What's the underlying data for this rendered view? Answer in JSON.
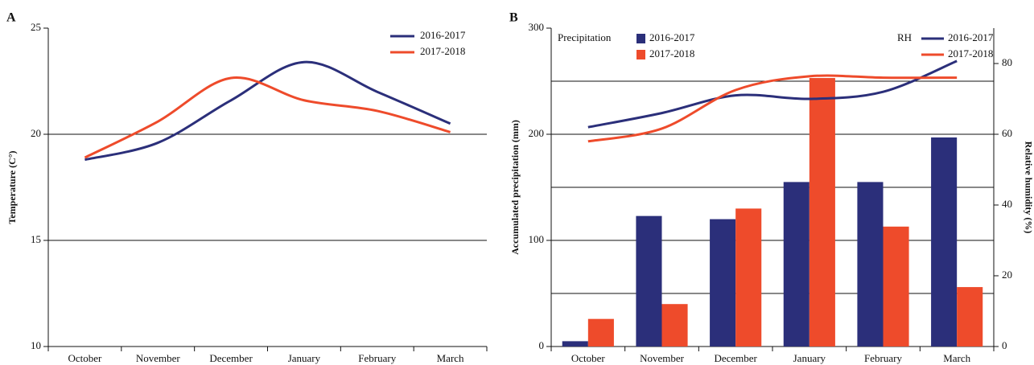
{
  "chart_data": [
    {
      "type": "line",
      "label": "A",
      "ylabel": "Temperature (C°)",
      "categories": [
        "October",
        "November",
        "December",
        "January",
        "February",
        "March"
      ],
      "ylim": [
        10,
        25
      ],
      "yticks": [
        10,
        15,
        20,
        25
      ],
      "grid_lines": [
        15,
        20
      ],
      "series": [
        {
          "name": "2016-2017",
          "color": "#2b2f7a",
          "values": [
            18.8,
            19.6,
            21.6,
            23.4,
            22.0,
            20.5
          ]
        },
        {
          "name": "2017-2018",
          "color": "#ee4b2b",
          "values": [
            18.9,
            20.6,
            22.65,
            21.6,
            21.1,
            20.1
          ]
        }
      ]
    },
    {
      "type": "bar_line",
      "label": "B",
      "ylabel": "Accumulated precipitation (mm)",
      "y2label": "Relative humidity (%)",
      "bar_legend_title": "Precipitation",
      "line_legend_title": "RH",
      "categories": [
        "October",
        "November",
        "December",
        "January",
        "February",
        "March"
      ],
      "ylim": [
        0,
        300
      ],
      "yticks": [
        0,
        100,
        200,
        300
      ],
      "grid_lines": [
        50,
        100,
        150,
        200,
        250
      ],
      "y2lim": [
        0,
        90
      ],
      "y2ticks": [
        0,
        20,
        40,
        60,
        80
      ],
      "series": [
        {
          "name": "2016-2017",
          "mark": "bar",
          "color": "#2b2f7a",
          "values": [
            5,
            123,
            120,
            155,
            155,
            197
          ]
        },
        {
          "name": "2017-2018",
          "mark": "bar",
          "color": "#ee4b2b",
          "values": [
            26,
            40,
            130,
            253,
            113,
            56
          ]
        },
        {
          "name": "2016-2017",
          "mark": "line",
          "axis": "y2",
          "color": "#2b2f7a",
          "values": [
            62,
            66,
            71,
            70,
            72,
            80.7
          ]
        },
        {
          "name": "2017-2018",
          "mark": "line",
          "axis": "y2",
          "color": "#ee4b2b",
          "values": [
            58,
            61.6,
            72.5,
            76.4,
            76,
            76
          ]
        }
      ]
    }
  ]
}
